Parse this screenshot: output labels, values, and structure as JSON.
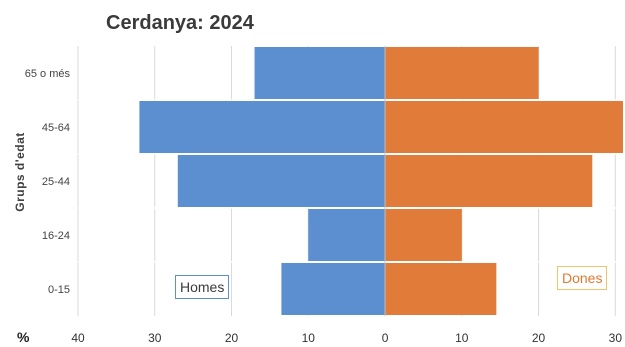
{
  "chart_data": {
    "type": "bar",
    "orientation": "horizontal",
    "title": "Cerdanya: 2024",
    "ylabel": "Grups d'edat",
    "xlabel_unit": "%",
    "categories": [
      "65 o més",
      "45-64",
      "25-44",
      "16-24",
      "0-15"
    ],
    "series": [
      {
        "name": "Homes",
        "color": "#5b8fcf",
        "values": [
          17.0,
          32.0,
          27.0,
          10.0,
          13.5
        ]
      },
      {
        "name": "Dones",
        "color": "#e07b39",
        "values": [
          20.0,
          31.0,
          27.0,
          10.0,
          14.5
        ]
      }
    ],
    "xlim": [
      -40,
      31
    ],
    "xticks": [
      {
        "value": -40,
        "label": "40"
      },
      {
        "value": -30,
        "label": "30"
      },
      {
        "value": -20,
        "label": "20"
      },
      {
        "value": -10,
        "label": "10"
      },
      {
        "value": 0,
        "label": "0"
      },
      {
        "value": 10,
        "label": "10"
      },
      {
        "value": 20,
        "label": "20"
      },
      {
        "value": 30,
        "label": "30"
      }
    ],
    "grid": true,
    "legend_placement": "inside bottom, Homes left / Dones right"
  }
}
